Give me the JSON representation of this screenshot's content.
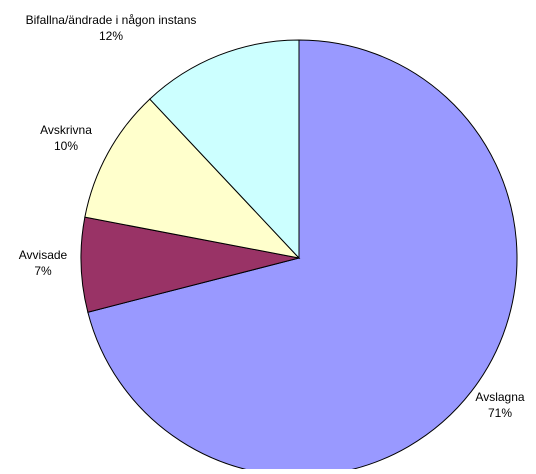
{
  "chart_data": {
    "type": "pie",
    "title": "",
    "start_angle_deg": 0,
    "direction": "clockwise",
    "slices": [
      {
        "label": "Avslagna",
        "percent_label": "71%",
        "value": 71,
        "color": "#9999FF"
      },
      {
        "label": "Avvisade",
        "percent_label": "7%",
        "value": 7,
        "color": "#993366"
      },
      {
        "label": "Avskrivna",
        "percent_label": "10%",
        "value": 10,
        "color": "#FFFFCC"
      },
      {
        "label": "Bifallna/ändrade i någon instans",
        "percent_label": "12%",
        "value": 12,
        "color": "#CCFFFF"
      }
    ],
    "stroke_color": "#000000",
    "legend": "none"
  }
}
